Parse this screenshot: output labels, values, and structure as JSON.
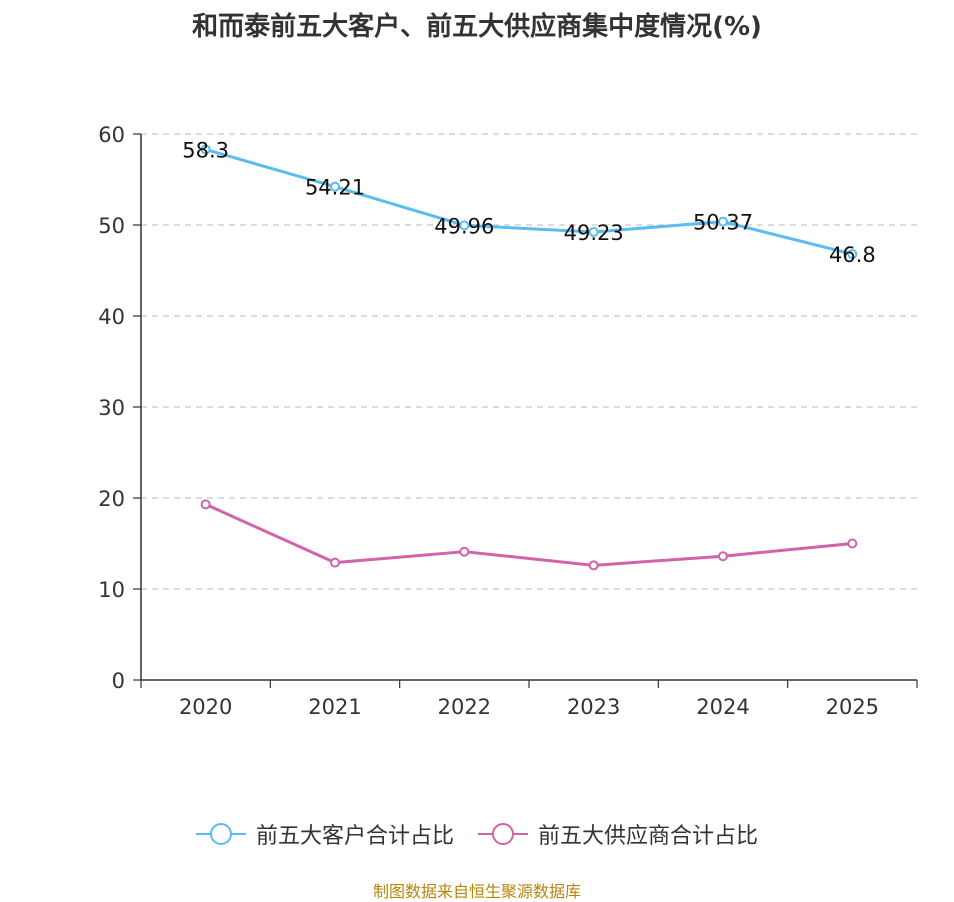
{
  "chart_data": {
    "type": "line",
    "title": "和而泰前五大客户、前五大供应商集中度情况(%)",
    "categories": [
      "2020",
      "2021",
      "2022",
      "2023",
      "2024",
      "2025"
    ],
    "ylim": [
      0,
      60
    ],
    "yticks": [
      0,
      10,
      20,
      30,
      40,
      50,
      60
    ],
    "grid": true,
    "legend_position": "bottom",
    "series": [
      {
        "name": "前五大客户合计占比",
        "values": [
          58.3,
          54.21,
          49.96,
          49.23,
          50.37,
          46.8
        ],
        "color": "#5bbcef",
        "show_labels": true
      },
      {
        "name": "前五大供应商合计占比",
        "values": [
          19.3,
          12.9,
          14.1,
          12.6,
          13.6,
          15.0
        ],
        "color": "#d063a9",
        "show_labels": false
      }
    ]
  },
  "source": "制图数据来自恒生聚源数据库"
}
